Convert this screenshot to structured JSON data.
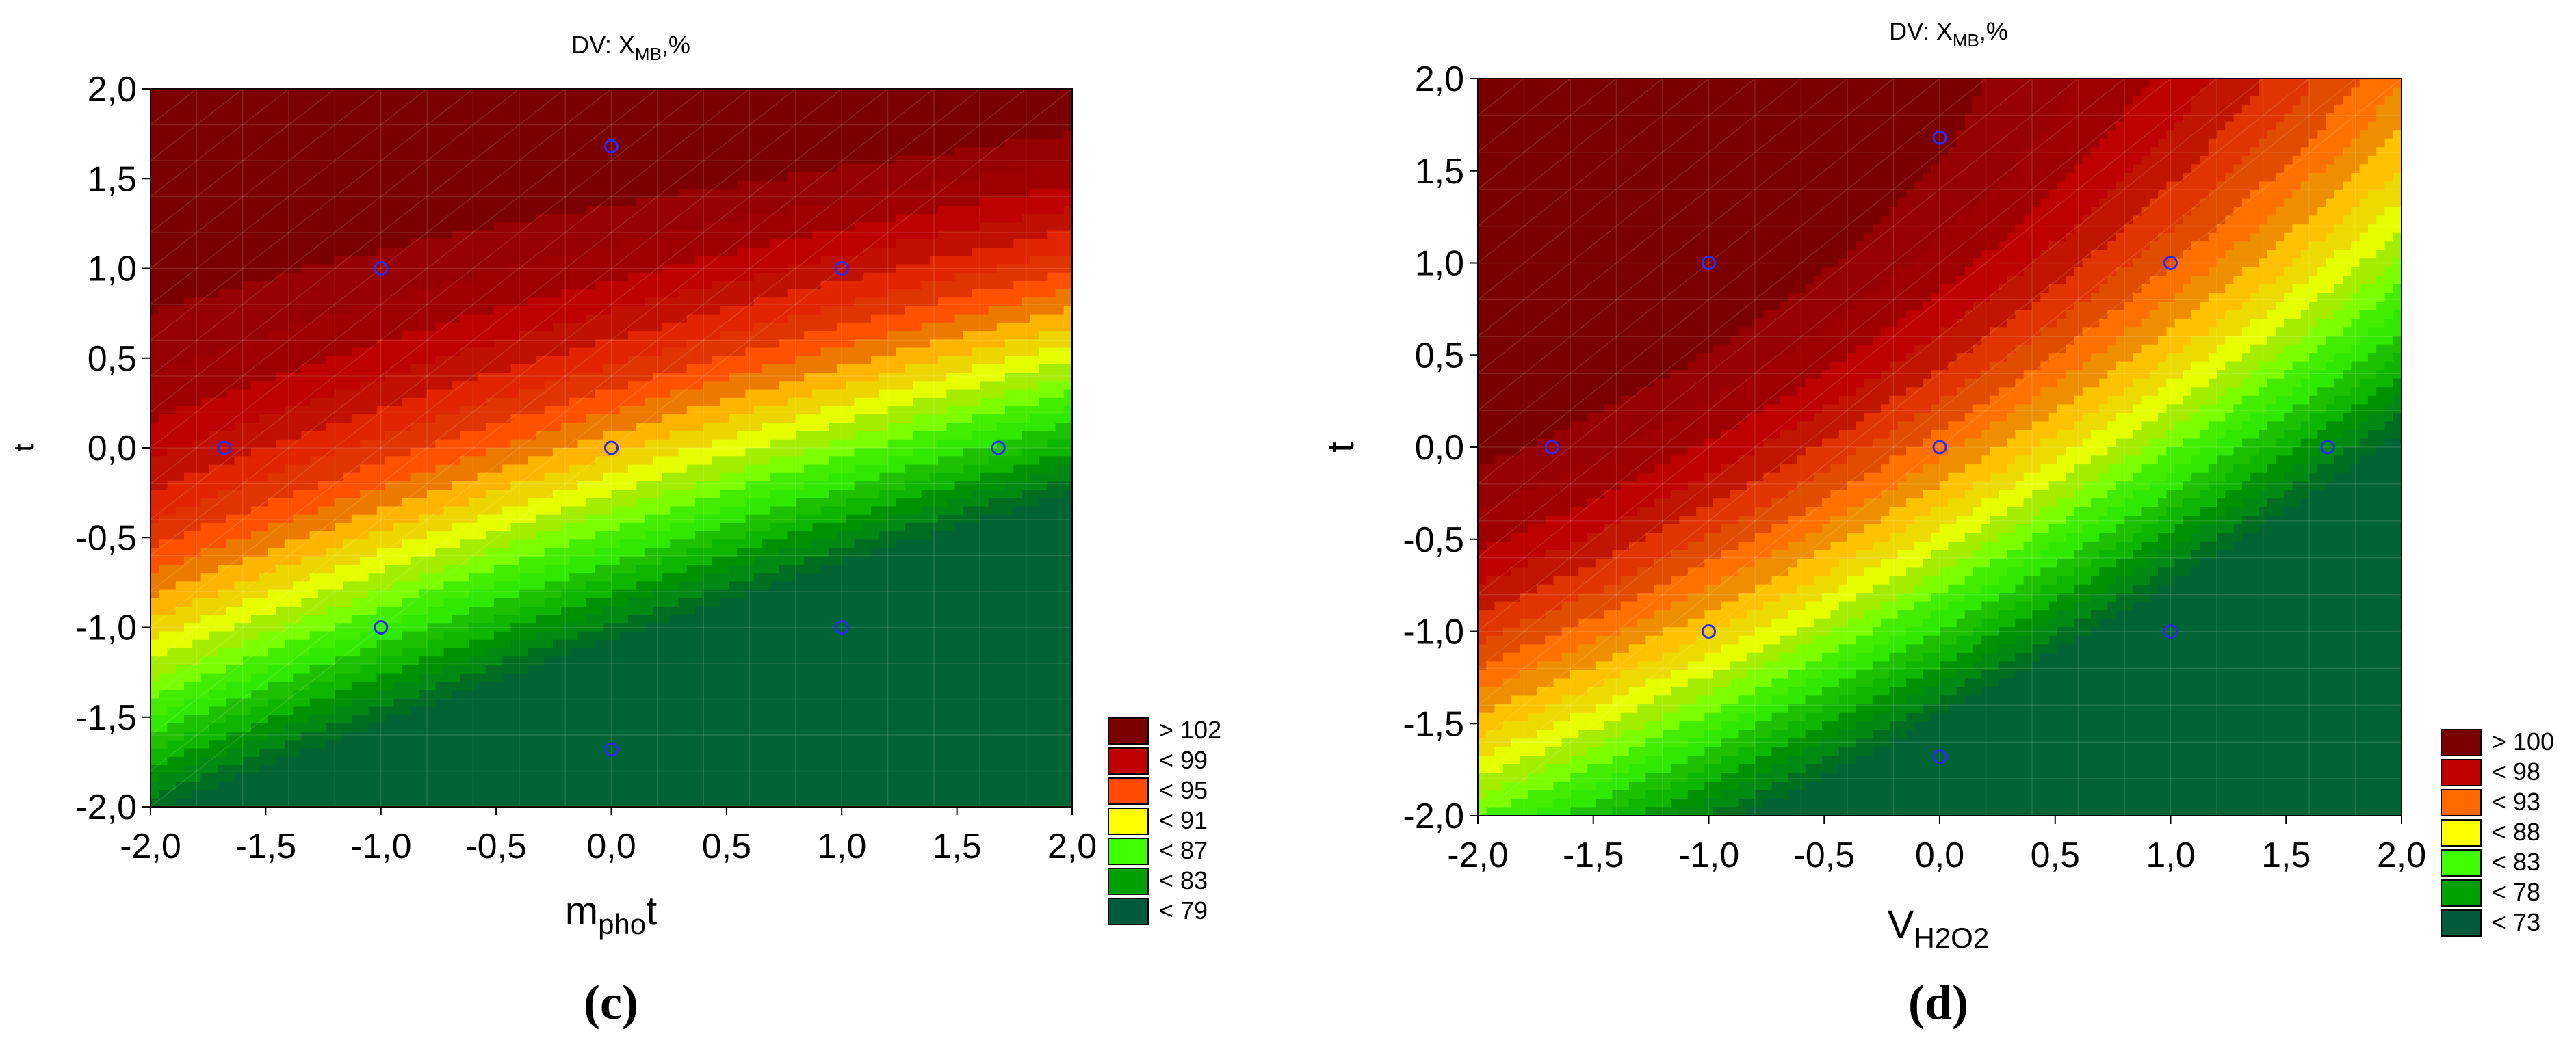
{
  "figure": {
    "panels": [
      {
        "title_main": "DV: X",
        "title_sub": "MB",
        "title_tail": ",%",
        "xlabel_main": "m",
        "xlabel_sub": "pho",
        "xlabel_tail": "t",
        "ylabel": "t",
        "panel_label": "(c)"
      },
      {
        "title_main": "DV: X",
        "title_sub": "MB",
        "title_tail": ",%",
        "xlabel_main": "V",
        "xlabel_sub": "H2O2",
        "xlabel_tail": "",
        "ylabel": "t",
        "panel_label": "(d)"
      }
    ]
  },
  "chart_data": [
    {
      "type": "heatmap",
      "subtype": "contour",
      "title": "DV: XMB,%",
      "xlabel": "mphot",
      "ylabel": "t",
      "xlim": [
        -2.0,
        2.0
      ],
      "ylim": [
        -2.0,
        2.0
      ],
      "xticks": [
        "-2,0",
        "-1,5",
        "-1,0",
        "-0,5",
        "0,0",
        "0,5",
        "1,0",
        "1,5",
        "2,0"
      ],
      "yticks": [
        "-2,0",
        "-1,5",
        "-1,0",
        "-0,5",
        "0,0",
        "0,5",
        "1,0",
        "1,5",
        "2,0"
      ],
      "grid": false,
      "legend_position": "right-bottom",
      "legend": [
        {
          "label": "> 102",
          "color": "#7a0000"
        },
        {
          "label": "< 99",
          "color": "#c00000"
        },
        {
          "label": "< 95",
          "color": "#ff4a00"
        },
        {
          "label": "< 91",
          "color": "#ffff00"
        },
        {
          "label": "< 87",
          "color": "#3fff00"
        },
        {
          "label": "< 83",
          "color": "#00a000"
        },
        {
          "label": "< 79",
          "color": "#005a3c"
        }
      ],
      "design_points": [
        {
          "x": 0.0,
          "y": 1.68
        },
        {
          "x": -1.0,
          "y": 1.0
        },
        {
          "x": 1.0,
          "y": 1.0
        },
        {
          "x": -1.68,
          "y": 0.0
        },
        {
          "x": 0.0,
          "y": 0.0
        },
        {
          "x": 1.68,
          "y": 0.0
        },
        {
          "x": -1.0,
          "y": -1.0
        },
        {
          "x": 1.0,
          "y": -1.0
        },
        {
          "x": 0.0,
          "y": -1.68
        }
      ],
      "point_color": "#2a2aff"
    },
    {
      "type": "heatmap",
      "subtype": "contour",
      "title": "DV: XMB,%",
      "xlabel": "VH2O2",
      "ylabel": "t",
      "xlim": [
        -2.0,
        2.0
      ],
      "ylim": [
        -2.0,
        2.0
      ],
      "xticks": [
        "-2,0",
        "-1,5",
        "-1,0",
        "-0,5",
        "0,0",
        "0,5",
        "1,0",
        "1,5",
        "2,0"
      ],
      "yticks": [
        "-2,0",
        "-1,5",
        "-1,0",
        "-0,5",
        "0,0",
        "0,5",
        "1,0",
        "1,5",
        "2,0"
      ],
      "grid": false,
      "legend_position": "right-bottom",
      "legend": [
        {
          "label": "> 100",
          "color": "#7a0000"
        },
        {
          "label": "< 98",
          "color": "#c00000"
        },
        {
          "label": "< 93",
          "color": "#ff6a00"
        },
        {
          "label": "< 88",
          "color": "#ffff00"
        },
        {
          "label": "< 83",
          "color": "#3fff00"
        },
        {
          "label": "< 78",
          "color": "#00a000"
        },
        {
          "label": "< 73",
          "color": "#005a3c"
        }
      ],
      "design_points": [
        {
          "x": 0.0,
          "y": 1.68
        },
        {
          "x": -1.0,
          "y": 1.0
        },
        {
          "x": 1.0,
          "y": 1.0
        },
        {
          "x": -1.68,
          "y": 0.0
        },
        {
          "x": 0.0,
          "y": 0.0
        },
        {
          "x": 1.68,
          "y": 0.0
        },
        {
          "x": -1.0,
          "y": -1.0
        },
        {
          "x": 1.0,
          "y": -1.0
        },
        {
          "x": 0.0,
          "y": -1.68
        }
      ],
      "point_color": "#2a2aff"
    }
  ]
}
